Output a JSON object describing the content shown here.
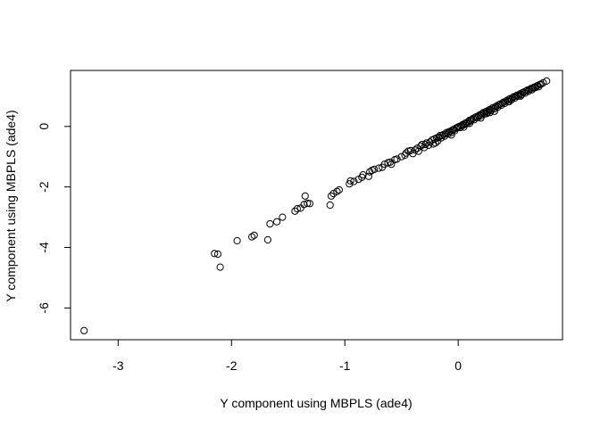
{
  "chart_data": {
    "type": "scatter",
    "title": "",
    "xlabel": "Y component using MBPLS (ade4)",
    "ylabel": "Y component using MBPLS (ade4)",
    "xlim": [
      -3.42,
      0.92
    ],
    "ylim": [
      -7.05,
      1.85
    ],
    "xticks": [
      -3,
      -2,
      -1,
      0
    ],
    "yticks": [
      -6,
      -4,
      -2,
      0
    ],
    "xtick_labels": [
      "-3",
      "-2",
      "-1",
      "0"
    ],
    "ytick_labels": [
      "-6",
      "-4",
      "-2",
      "0"
    ],
    "grid": false,
    "legend": "none",
    "marker": "open-circle",
    "colors": {
      "points": "#000000",
      "axes": "#000000",
      "background": "#ffffff"
    },
    "points": [
      [
        -3.3,
        -6.75
      ],
      [
        -2.15,
        -4.2
      ],
      [
        -2.12,
        -4.22
      ],
      [
        -2.1,
        -4.65
      ],
      [
        -1.95,
        -3.78
      ],
      [
        -1.82,
        -3.65
      ],
      [
        -1.8,
        -3.6
      ],
      [
        -1.68,
        -3.75
      ],
      [
        -1.66,
        -3.22
      ],
      [
        -1.6,
        -3.15
      ],
      [
        -1.55,
        -3.0
      ],
      [
        -1.44,
        -2.8
      ],
      [
        -1.42,
        -2.72
      ],
      [
        -1.39,
        -2.7
      ],
      [
        -1.36,
        -2.58
      ],
      [
        -1.35,
        -2.3
      ],
      [
        -1.33,
        -2.54
      ],
      [
        -1.31,
        -2.55
      ],
      [
        -1.13,
        -2.6
      ],
      [
        -1.12,
        -2.3
      ],
      [
        -1.1,
        -2.22
      ],
      [
        -1.07,
        -2.15
      ],
      [
        -1.05,
        -2.1
      ],
      [
        -0.96,
        -1.9
      ],
      [
        -0.95,
        -1.8
      ],
      [
        -0.92,
        -1.82
      ],
      [
        -0.88,
        -1.75
      ],
      [
        -0.85,
        -1.68
      ],
      [
        -0.84,
        -1.6
      ],
      [
        -0.79,
        -1.65
      ],
      [
        -0.78,
        -1.5
      ],
      [
        -0.76,
        -1.45
      ],
      [
        -0.74,
        -1.42
      ],
      [
        -0.7,
        -1.38
      ],
      [
        -0.67,
        -1.35
      ],
      [
        -0.65,
        -1.25
      ],
      [
        -0.62,
        -1.2
      ],
      [
        -0.6,
        -1.18
      ],
      [
        -0.59,
        -1.25
      ],
      [
        -0.56,
        -1.1
      ],
      [
        -0.54,
        -1.08
      ],
      [
        -0.5,
        -1.0
      ],
      [
        -0.47,
        -0.95
      ],
      [
        -0.46,
        -0.88
      ],
      [
        -0.44,
        -0.82
      ],
      [
        -0.42,
        -0.8
      ],
      [
        -0.4,
        -0.9
      ],
      [
        -0.38,
        -0.78
      ],
      [
        -0.36,
        -0.72
      ],
      [
        -0.35,
        -0.82
      ],
      [
        -0.33,
        -0.65
      ],
      [
        -0.32,
        -0.6
      ],
      [
        -0.3,
        -0.7
      ],
      [
        -0.29,
        -0.6
      ],
      [
        -0.28,
        -0.55
      ],
      [
        -0.26,
        -0.62
      ],
      [
        -0.25,
        -0.52
      ],
      [
        -0.23,
        -0.45
      ],
      [
        -0.22,
        -0.58
      ],
      [
        -0.21,
        -0.42
      ],
      [
        -0.19,
        -0.38
      ],
      [
        -0.18,
        -0.48
      ],
      [
        -0.17,
        -0.35
      ],
      [
        -0.16,
        -0.3
      ],
      [
        -0.15,
        -0.38
      ],
      [
        -0.14,
        -0.3
      ],
      [
        -0.13,
        -0.27
      ],
      [
        -0.12,
        -0.32
      ],
      [
        -0.11,
        -0.23
      ],
      [
        -0.1,
        -0.2
      ],
      [
        -0.09,
        -0.25
      ],
      [
        -0.08,
        -0.18
      ],
      [
        -0.07,
        -0.16
      ],
      [
        -0.06,
        -0.2
      ],
      [
        -0.05,
        -0.12
      ],
      [
        -0.04,
        -0.1
      ],
      [
        -0.03,
        -0.14
      ],
      [
        -0.02,
        -0.06
      ],
      [
        -0.01,
        -0.04
      ],
      [
        0.0,
        -0.02
      ],
      [
        0.01,
        0.0
      ],
      [
        0.02,
        -0.04
      ],
      [
        0.03,
        0.03
      ],
      [
        0.04,
        0.06
      ],
      [
        0.05,
        0.05
      ],
      [
        0.06,
        0.1
      ],
      [
        0.07,
        0.12
      ],
      [
        0.08,
        0.1
      ],
      [
        0.09,
        0.16
      ],
      [
        0.1,
        0.2
      ],
      [
        0.11,
        0.18
      ],
      [
        0.12,
        0.23
      ],
      [
        0.13,
        0.26
      ],
      [
        0.14,
        0.22
      ],
      [
        0.15,
        0.3
      ],
      [
        0.16,
        0.32
      ],
      [
        0.17,
        0.29
      ],
      [
        0.18,
        0.35
      ],
      [
        0.19,
        0.38
      ],
      [
        0.2,
        0.35
      ],
      [
        0.21,
        0.42
      ],
      [
        0.22,
        0.45
      ],
      [
        0.23,
        0.41
      ],
      [
        0.24,
        0.48
      ],
      [
        0.25,
        0.5
      ],
      [
        0.26,
        0.46
      ],
      [
        0.27,
        0.54
      ],
      [
        0.28,
        0.56
      ],
      [
        0.29,
        0.53
      ],
      [
        0.3,
        0.6
      ],
      [
        0.31,
        0.62
      ],
      [
        0.32,
        0.58
      ],
      [
        0.33,
        0.65
      ],
      [
        0.34,
        0.68
      ],
      [
        0.35,
        0.64
      ],
      [
        0.36,
        0.72
      ],
      [
        0.37,
        0.74
      ],
      [
        0.38,
        0.7
      ],
      [
        0.39,
        0.77
      ],
      [
        0.4,
        0.8
      ],
      [
        0.41,
        0.76
      ],
      [
        0.42,
        0.83
      ],
      [
        0.43,
        0.86
      ],
      [
        0.44,
        0.82
      ],
      [
        0.45,
        0.9
      ],
      [
        0.46,
        0.92
      ],
      [
        0.47,
        0.88
      ],
      [
        0.48,
        0.95
      ],
      [
        0.49,
        0.98
      ],
      [
        0.5,
        0.94
      ],
      [
        0.51,
        1.0
      ],
      [
        0.52,
        1.03
      ],
      [
        0.53,
        1.0
      ],
      [
        0.54,
        1.06
      ],
      [
        0.55,
        1.08
      ],
      [
        0.56,
        1.05
      ],
      [
        0.57,
        1.12
      ],
      [
        0.58,
        1.14
      ],
      [
        0.59,
        1.1
      ],
      [
        0.6,
        1.17
      ],
      [
        0.61,
        1.2
      ],
      [
        0.62,
        1.16
      ],
      [
        0.63,
        1.22
      ],
      [
        0.64,
        1.25
      ],
      [
        0.65,
        1.21
      ],
      [
        0.66,
        1.27
      ],
      [
        0.67,
        1.3
      ],
      [
        0.68,
        1.28
      ],
      [
        0.69,
        1.33
      ],
      [
        0.7,
        1.35
      ],
      [
        0.71,
        1.31
      ],
      [
        0.72,
        1.38
      ],
      [
        0.73,
        1.4
      ],
      [
        0.75,
        1.44
      ],
      [
        0.78,
        1.5
      ],
      [
        0.32,
        0.5
      ],
      [
        0.28,
        0.46
      ],
      [
        0.2,
        0.28
      ],
      [
        0.1,
        0.1
      ],
      [
        0.05,
        -0.02
      ],
      [
        -0.06,
        -0.28
      ],
      [
        -0.2,
        -0.55
      ],
      [
        0.25,
        0.42
      ],
      [
        0.45,
        0.82
      ],
      [
        0.55,
        1.0
      ]
    ]
  }
}
